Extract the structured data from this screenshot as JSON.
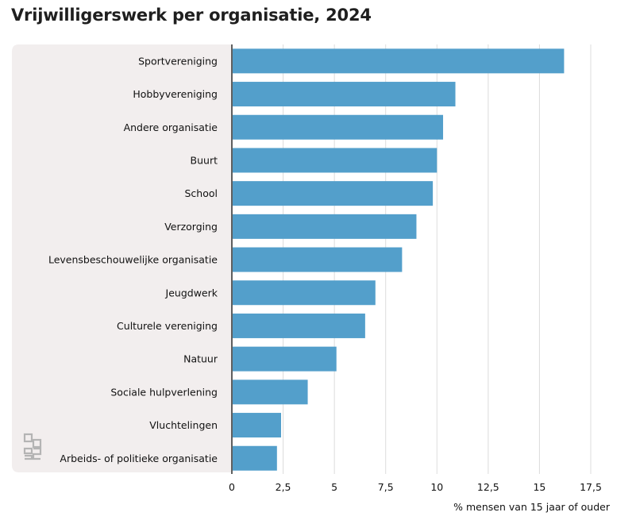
{
  "chart_data": {
    "type": "bar",
    "orientation": "horizontal",
    "title": "Vrijwilligerswerk per organisatie, 2024",
    "xlabel": "% mensen van 15 jaar of ouder",
    "ylabel": "",
    "categories": [
      "Sportvereniging",
      "Hobbyvereniging",
      "Andere organisatie",
      "Buurt",
      "School",
      "Verzorging",
      "Levensbeschouwelijke organisatie",
      "Jeugdwerk",
      "Culturele vereniging",
      "Natuur",
      "Sociale hulpverlening",
      "Vluchtelingen",
      "Arbeids- of politieke organisatie"
    ],
    "values": [
      16.2,
      10.9,
      10.3,
      10.0,
      9.8,
      9.0,
      8.3,
      7.0,
      6.5,
      5.1,
      3.7,
      2.4,
      2.2
    ],
    "xlim": [
      0,
      17.5
    ],
    "ticks": [
      0,
      2.5,
      5,
      7.5,
      10,
      12.5,
      15,
      17.5
    ],
    "tick_labels": [
      "0",
      "2,5",
      "5",
      "7,5",
      "10",
      "12,5",
      "15",
      "17,5"
    ],
    "grid": true,
    "colors": {
      "bar": "#539fcb",
      "panel": "#f2eeee",
      "grid": "#dcdcdc",
      "axis": "#5f5f5f",
      "logo": "#b4b4b4"
    }
  }
}
